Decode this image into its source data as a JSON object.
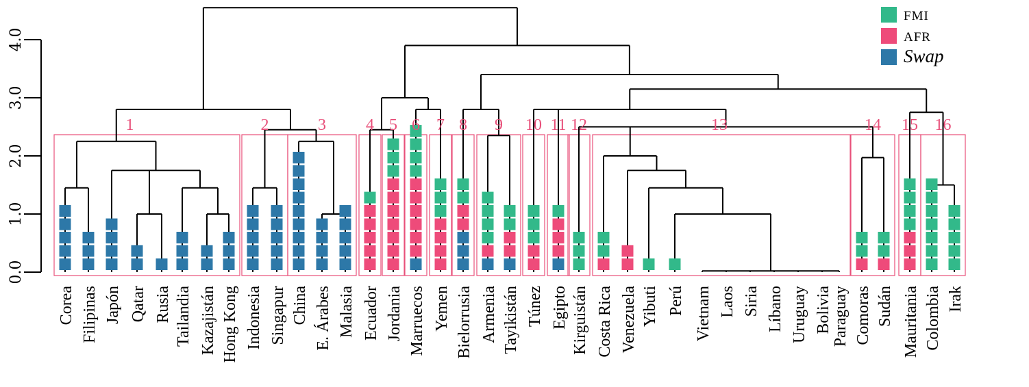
{
  "chart_data": {
    "type": "dendrogram",
    "title": "",
    "xlabel": "",
    "ylabel": "",
    "ylim": [
      0,
      4.5
    ],
    "y_ticks": [
      "0.0",
      "1.0",
      "2.0",
      "3.0",
      "4.0"
    ],
    "y_tick_values": [
      0,
      1,
      2,
      3,
      4
    ],
    "legend": {
      "placement": "top-right",
      "entries": [
        {
          "key": "FMI",
          "label": "FMI",
          "color": "#32b98a",
          "italic": false
        },
        {
          "key": "AFR",
          "label": "AFR",
          "color": "#ee4b7a",
          "italic": false
        },
        {
          "key": "Swap",
          "label": "Swap",
          "color": "#2d78a8",
          "italic": true
        }
      ]
    },
    "leaves": [
      {
        "name": "Corea",
        "markers": [
          "Swap",
          "Swap",
          "Swap",
          "Swap",
          "Swap"
        ]
      },
      {
        "name": "Filipinas",
        "markers": [
          "Swap",
          "Swap",
          "Swap"
        ]
      },
      {
        "name": "Japón",
        "markers": [
          "Swap",
          "Swap",
          "Swap",
          "Swap"
        ]
      },
      {
        "name": "Qatar",
        "markers": [
          "Swap",
          "Swap"
        ]
      },
      {
        "name": "Rusia",
        "markers": [
          "Swap"
        ]
      },
      {
        "name": "Tailandia",
        "markers": [
          "Swap",
          "Swap",
          "Swap"
        ]
      },
      {
        "name": "Kazajistán",
        "markers": [
          "Swap",
          "Swap"
        ]
      },
      {
        "name": "Hong Kong",
        "markers": [
          "Swap",
          "Swap",
          "Swap"
        ]
      },
      {
        "name": "Indonesia",
        "markers": [
          "Swap",
          "Swap",
          "Swap",
          "Swap",
          "Swap"
        ]
      },
      {
        "name": "Singapur",
        "markers": [
          "Swap",
          "Swap",
          "Swap",
          "Swap",
          "Swap"
        ]
      },
      {
        "name": "China",
        "markers": [
          "Swap",
          "Swap",
          "Swap",
          "Swap",
          "Swap",
          "Swap",
          "Swap",
          "Swap",
          "Swap"
        ]
      },
      {
        "name": "E. Árabes",
        "markers": [
          "Swap",
          "Swap",
          "Swap",
          "Swap"
        ]
      },
      {
        "name": "Malasia",
        "markers": [
          "Swap",
          "Swap",
          "Swap",
          "Swap",
          "Swap"
        ]
      },
      {
        "name": "Ecuador",
        "markers": [
          "AFR",
          "AFR",
          "AFR",
          "AFR",
          "AFR",
          "FMI"
        ]
      },
      {
        "name": "Jordania",
        "markers": [
          "AFR",
          "AFR",
          "AFR",
          "AFR",
          "AFR",
          "AFR",
          "AFR",
          "FMI",
          "FMI",
          "FMI"
        ]
      },
      {
        "name": "Marruecos",
        "markers": [
          "Swap",
          "AFR",
          "AFR",
          "AFR",
          "AFR",
          "AFR",
          "AFR",
          "FMI",
          "FMI",
          "FMI",
          "FMI"
        ]
      },
      {
        "name": "Yemen",
        "markers": [
          "AFR",
          "AFR",
          "AFR",
          "AFR",
          "FMI",
          "FMI",
          "FMI"
        ]
      },
      {
        "name": "Bielorrusia",
        "markers": [
          "Swap",
          "Swap",
          "Swap",
          "AFR",
          "AFR",
          "FMI",
          "FMI"
        ]
      },
      {
        "name": "Armenia",
        "markers": [
          "Swap",
          "AFR",
          "FMI",
          "FMI",
          "FMI",
          "FMI"
        ]
      },
      {
        "name": "Tayikistán",
        "markers": [
          "Swap",
          "AFR",
          "AFR",
          "FMI",
          "FMI"
        ]
      },
      {
        "name": "Túnez",
        "markers": [
          "AFR",
          "AFR",
          "FMI",
          "FMI",
          "FMI"
        ]
      },
      {
        "name": "Egipto",
        "markers": [
          "Swap",
          "AFR",
          "AFR",
          "AFR",
          "FMI"
        ]
      },
      {
        "name": "Kirguistán",
        "markers": [
          "FMI",
          "FMI",
          "FMI"
        ]
      },
      {
        "name": "Costa Rica",
        "markers": [
          "AFR",
          "FMI",
          "FMI"
        ]
      },
      {
        "name": "Venezuela",
        "markers": [
          "AFR",
          "AFR"
        ]
      },
      {
        "name": "Yibuti",
        "markers": [
          "FMI"
        ]
      },
      {
        "name": "Perú",
        "markers": [
          "FMI"
        ]
      },
      {
        "name": "Vietnam",
        "markers": []
      },
      {
        "name": "Laos",
        "markers": []
      },
      {
        "name": "Siria",
        "markers": []
      },
      {
        "name": "Líbano",
        "markers": []
      },
      {
        "name": "Uruguay",
        "markers": []
      },
      {
        "name": "Bolivia",
        "markers": []
      },
      {
        "name": "Paraguay",
        "markers": []
      },
      {
        "name": "Comoras",
        "markers": [
          "AFR",
          "FMI",
          "FMI"
        ]
      },
      {
        "name": "Sudán",
        "markers": [
          "AFR",
          "FMI",
          "FMI"
        ]
      },
      {
        "name": "Mauritania",
        "markers": [
          "AFR",
          "AFR",
          "AFR",
          "FMI",
          "FMI",
          "FMI",
          "FMI"
        ]
      },
      {
        "name": "Colombia",
        "markers": [
          "FMI",
          "FMI",
          "FMI",
          "FMI",
          "FMI",
          "FMI",
          "FMI"
        ]
      },
      {
        "name": "Irak",
        "markers": [
          "FMI",
          "FMI",
          "FMI",
          "FMI",
          "FMI"
        ]
      }
    ],
    "clusters": [
      {
        "label": "1",
        "first": 0,
        "last": 7
      },
      {
        "label": "2",
        "first": 8,
        "last": 9
      },
      {
        "label": "3",
        "first": 10,
        "last": 12
      },
      {
        "label": "4",
        "first": 13,
        "last": 13
      },
      {
        "label": "5",
        "first": 14,
        "last": 14
      },
      {
        "label": "6",
        "first": 15,
        "last": 15
      },
      {
        "label": "7",
        "first": 16,
        "last": 16
      },
      {
        "label": "8",
        "first": 17,
        "last": 17
      },
      {
        "label": "9",
        "first": 18,
        "last": 19
      },
      {
        "label": "10",
        "first": 20,
        "last": 20
      },
      {
        "label": "11",
        "first": 21,
        "last": 21
      },
      {
        "label": "12",
        "first": 22,
        "last": 22
      },
      {
        "label": "13",
        "first": 23,
        "last": 33
      },
      {
        "label": "14",
        "first": 34,
        "last": 35
      },
      {
        "label": "15",
        "first": 36,
        "last": 36
      },
      {
        "label": "16",
        "first": 37,
        "last": 38
      }
    ],
    "merges": [
      {
        "id": "a1",
        "children": [
          "L0",
          "L1"
        ],
        "height": 1.45
      },
      {
        "id": "a2",
        "children": [
          "L3",
          "L4"
        ],
        "height": 1.0
      },
      {
        "id": "a3",
        "children": [
          "L6",
          "L7"
        ],
        "height": 1.0
      },
      {
        "id": "a4",
        "children": [
          "L5",
          "a3"
        ],
        "height": 1.45
      },
      {
        "id": "a5",
        "children": [
          "L2",
          "a2",
          "a4"
        ],
        "height": 1.75
      },
      {
        "id": "a6",
        "children": [
          "a1",
          "a5"
        ],
        "height": 2.25
      },
      {
        "id": "b1",
        "children": [
          "L8",
          "L9"
        ],
        "height": 1.45
      },
      {
        "id": "b2",
        "children": [
          "L11",
          "L12"
        ],
        "height": 1.0
      },
      {
        "id": "b3",
        "children": [
          "L10",
          "b2"
        ],
        "height": 2.25
      },
      {
        "id": "b4",
        "children": [
          "b1",
          "b3"
        ],
        "height": 2.45
      },
      {
        "id": "b5",
        "children": [
          "a6",
          "b4"
        ],
        "height": 2.8
      },
      {
        "id": "c1",
        "children": [
          "L13",
          "L14"
        ],
        "height": 2.45
      },
      {
        "id": "c2",
        "children": [
          "L15",
          "L16"
        ],
        "height": 2.8
      },
      {
        "id": "c3",
        "children": [
          "c1",
          "c2"
        ],
        "height": 3.0
      },
      {
        "id": "d1",
        "children": [
          "L18",
          "L19"
        ],
        "height": 2.35
      },
      {
        "id": "d2",
        "children": [
          "L17",
          "d1"
        ],
        "height": 2.8
      },
      {
        "id": "e1",
        "children": [
          "L27",
          "L28",
          "L29",
          "L30",
          "L31",
          "L32",
          "L33"
        ],
        "height": 0.02
      },
      {
        "id": "e2",
        "children": [
          "L26",
          "e1"
        ],
        "height": 1.0
      },
      {
        "id": "e3",
        "children": [
          "L25",
          "e2"
        ],
        "height": 1.45
      },
      {
        "id": "e4",
        "children": [
          "L24",
          "e3"
        ],
        "height": 1.75
      },
      {
        "id": "e5",
        "children": [
          "L23",
          "e4"
        ],
        "height": 2.0
      },
      {
        "id": "f1",
        "children": [
          "L34",
          "L35"
        ],
        "height": 1.97
      },
      {
        "id": "f2",
        "children": [
          "L22",
          "e5",
          "f1"
        ],
        "height": 2.5
      },
      {
        "id": "f3",
        "children": [
          "L20",
          "L21",
          "f2"
        ],
        "height": 2.8
      },
      {
        "id": "g1",
        "children": [
          "L37",
          "L38"
        ],
        "height": 1.5
      },
      {
        "id": "g2",
        "children": [
          "L36",
          "g1"
        ],
        "height": 2.75
      },
      {
        "id": "h1",
        "children": [
          "f3",
          "g2"
        ],
        "height": 3.15
      },
      {
        "id": "h2",
        "children": [
          "d2",
          "h1"
        ],
        "height": 3.4
      },
      {
        "id": "h3",
        "children": [
          "c3",
          "h2"
        ],
        "height": 3.9
      },
      {
        "id": "root",
        "children": [
          "b5",
          "h3"
        ],
        "height": 4.55
      }
    ]
  }
}
